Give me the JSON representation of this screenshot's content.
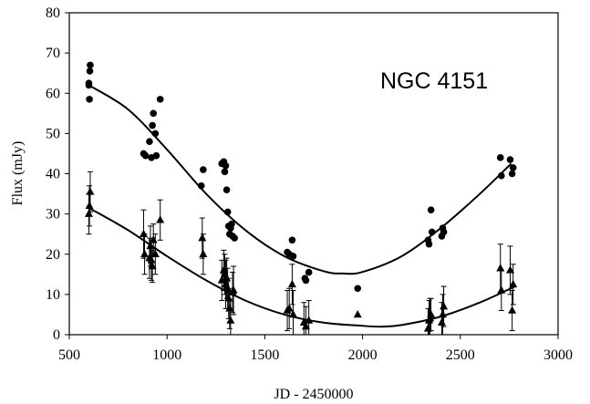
{
  "chart_data": {
    "type": "scatter",
    "title": "",
    "annotation": "NGC 4151",
    "xlabel": "JD - 2450000",
    "ylabel": "Flux (mJy)",
    "xlim": [
      500,
      3000
    ],
    "ylim": [
      0,
      80
    ],
    "xticks": [
      500,
      1000,
      1500,
      2000,
      2500,
      3000
    ],
    "yticks": [
      0,
      10,
      20,
      30,
      40,
      50,
      60,
      70,
      80
    ],
    "grid": false,
    "legend": "none",
    "series": [
      {
        "marker": "circle",
        "color": "#000000",
        "points": [
          {
            "x": 600,
            "y": 62.0
          },
          {
            "x": 600,
            "y": 62.5
          },
          {
            "x": 603,
            "y": 58.5
          },
          {
            "x": 605,
            "y": 65.5
          },
          {
            "x": 607,
            "y": 67.0
          },
          {
            "x": 880,
            "y": 45.0
          },
          {
            "x": 890,
            "y": 44.5
          },
          {
            "x": 910,
            "y": 48.0
          },
          {
            "x": 920,
            "y": 44.0
          },
          {
            "x": 925,
            "y": 52.0
          },
          {
            "x": 930,
            "y": 55.0
          },
          {
            "x": 940,
            "y": 50.0
          },
          {
            "x": 945,
            "y": 44.5
          },
          {
            "x": 965,
            "y": 58.5
          },
          {
            "x": 1175,
            "y": 37.0
          },
          {
            "x": 1185,
            "y": 41.0
          },
          {
            "x": 1280,
            "y": 42.5
          },
          {
            "x": 1290,
            "y": 43.0
          },
          {
            "x": 1295,
            "y": 40.5
          },
          {
            "x": 1300,
            "y": 42.0
          },
          {
            "x": 1305,
            "y": 36.0
          },
          {
            "x": 1310,
            "y": 30.5
          },
          {
            "x": 1315,
            "y": 27.0
          },
          {
            "x": 1320,
            "y": 25.0
          },
          {
            "x": 1325,
            "y": 26.5
          },
          {
            "x": 1330,
            "y": 27.5
          },
          {
            "x": 1335,
            "y": 24.5
          },
          {
            "x": 1345,
            "y": 24.0
          },
          {
            "x": 1615,
            "y": 20.5
          },
          {
            "x": 1625,
            "y": 20.0
          },
          {
            "x": 1640,
            "y": 23.5
          },
          {
            "x": 1645,
            "y": 19.5
          },
          {
            "x": 1705,
            "y": 14.0
          },
          {
            "x": 1710,
            "y": 13.5
          },
          {
            "x": 1725,
            "y": 15.5
          },
          {
            "x": 1975,
            "y": 11.5
          },
          {
            "x": 2335,
            "y": 23.5
          },
          {
            "x": 2340,
            "y": 22.5
          },
          {
            "x": 2350,
            "y": 31.0
          },
          {
            "x": 2355,
            "y": 25.5
          },
          {
            "x": 2405,
            "y": 24.5
          },
          {
            "x": 2410,
            "y": 26.5
          },
          {
            "x": 2415,
            "y": 25.5
          },
          {
            "x": 2705,
            "y": 44.0
          },
          {
            "x": 2710,
            "y": 39.5
          },
          {
            "x": 2755,
            "y": 43.5
          },
          {
            "x": 2765,
            "y": 40.0
          },
          {
            "x": 2770,
            "y": 41.5
          }
        ],
        "fit_curve": [
          {
            "x": 600,
            "y": 62
          },
          {
            "x": 800,
            "y": 56
          },
          {
            "x": 1000,
            "y": 46
          },
          {
            "x": 1200,
            "y": 35
          },
          {
            "x": 1400,
            "y": 26
          },
          {
            "x": 1600,
            "y": 19.5
          },
          {
            "x": 1800,
            "y": 15.8
          },
          {
            "x": 1900,
            "y": 15.2
          },
          {
            "x": 2000,
            "y": 15.6
          },
          {
            "x": 2200,
            "y": 19.5
          },
          {
            "x": 2400,
            "y": 26.5
          },
          {
            "x": 2600,
            "y": 35
          },
          {
            "x": 2760,
            "y": 42.5
          }
        ]
      },
      {
        "marker": "triangle",
        "color": "#000000",
        "points": [
          {
            "x": 600,
            "y": 30.0,
            "err": 5
          },
          {
            "x": 603,
            "y": 32.0,
            "err": 5
          },
          {
            "x": 607,
            "y": 35.5,
            "err": 5
          },
          {
            "x": 880,
            "y": 25.0,
            "err": 6
          },
          {
            "x": 885,
            "y": 20.0,
            "err": 5
          },
          {
            "x": 910,
            "y": 19.0,
            "err": 5
          },
          {
            "x": 915,
            "y": 22.0,
            "err": 5
          },
          {
            "x": 920,
            "y": 18.5,
            "err": 5
          },
          {
            "x": 925,
            "y": 17.0,
            "err": 4
          },
          {
            "x": 930,
            "y": 23.5,
            "err": 4
          },
          {
            "x": 940,
            "y": 20.0,
            "err": 5
          },
          {
            "x": 965,
            "y": 28.5,
            "err": 5
          },
          {
            "x": 1180,
            "y": 24.0,
            "err": 5
          },
          {
            "x": 1185,
            "y": 20.0,
            "err": 5
          },
          {
            "x": 1280,
            "y": 13.5,
            "err": 5
          },
          {
            "x": 1290,
            "y": 16.0,
            "err": 5
          },
          {
            "x": 1295,
            "y": 15.0,
            "err": 5
          },
          {
            "x": 1300,
            "y": 12.5,
            "err": 6
          },
          {
            "x": 1305,
            "y": 14.0,
            "err": 5
          },
          {
            "x": 1310,
            "y": 11.5,
            "err": 5
          },
          {
            "x": 1315,
            "y": 9.0,
            "err": 5
          },
          {
            "x": 1320,
            "y": 6.5,
            "err": 5
          },
          {
            "x": 1325,
            "y": 3.5,
            "err": 5
          },
          {
            "x": 1335,
            "y": 10.5,
            "err": 5
          },
          {
            "x": 1340,
            "y": 11.0,
            "err": 6
          },
          {
            "x": 1615,
            "y": 6.0,
            "err": 5
          },
          {
            "x": 1625,
            "y": 6.5,
            "err": 5
          },
          {
            "x": 1640,
            "y": 12.5,
            "err": 5
          },
          {
            "x": 1645,
            "y": 5.0,
            "err": 6
          },
          {
            "x": 1700,
            "y": 3.0,
            "err": 5
          },
          {
            "x": 1710,
            "y": 2.0,
            "err": 5
          },
          {
            "x": 1725,
            "y": 3.5,
            "err": 5
          },
          {
            "x": 1975,
            "y": 5.0,
            "err": 0
          },
          {
            "x": 2335,
            "y": 1.5,
            "err": 5
          },
          {
            "x": 2340,
            "y": 3.5,
            "err": 5
          },
          {
            "x": 2345,
            "y": 4.0,
            "err": 5
          },
          {
            "x": 2350,
            "y": 5.0,
            "err": 4
          },
          {
            "x": 2405,
            "y": 3.0,
            "err": 5
          },
          {
            "x": 2410,
            "y": 5.0,
            "err": 5
          },
          {
            "x": 2415,
            "y": 7.0,
            "err": 5
          },
          {
            "x": 2705,
            "y": 16.5,
            "err": 6
          },
          {
            "x": 2710,
            "y": 11.0,
            "err": 5
          },
          {
            "x": 2755,
            "y": 16.0,
            "err": 6
          },
          {
            "x": 2765,
            "y": 6.0,
            "err": 5
          },
          {
            "x": 2770,
            "y": 12.5,
            "err": 5
          }
        ],
        "fit_curve": [
          {
            "x": 600,
            "y": 31.5
          },
          {
            "x": 800,
            "y": 26
          },
          {
            "x": 1000,
            "y": 19.5
          },
          {
            "x": 1200,
            "y": 13.5
          },
          {
            "x": 1400,
            "y": 8.5
          },
          {
            "x": 1600,
            "y": 5
          },
          {
            "x": 1800,
            "y": 3
          },
          {
            "x": 2000,
            "y": 2.2
          },
          {
            "x": 2100,
            "y": 2
          },
          {
            "x": 2200,
            "y": 2.4
          },
          {
            "x": 2400,
            "y": 4.5
          },
          {
            "x": 2600,
            "y": 8
          },
          {
            "x": 2780,
            "y": 12
          }
        ]
      }
    ]
  }
}
